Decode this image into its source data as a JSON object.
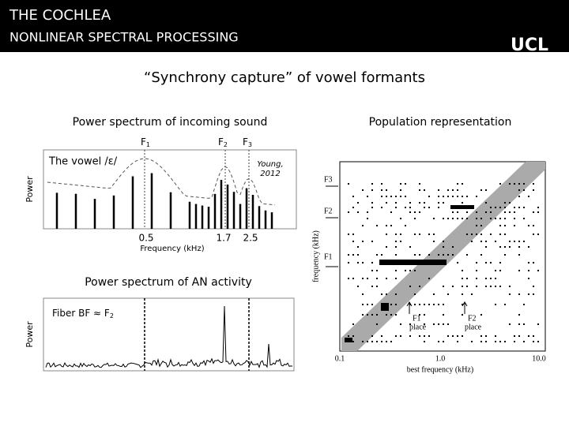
{
  "header": {
    "title": "THE COCHLEA",
    "subtitle": "NONLINEAR SPECTRAL PROCESSING",
    "logo": "UCL"
  },
  "slide_title": "“Synchrony capture” of vowel formants",
  "input_spectrum": {
    "heading": "Power spectrum of incoming sound",
    "formants": [
      {
        "base": "F",
        "sub": "1"
      },
      {
        "base": "F",
        "sub": "2"
      },
      {
        "base": "F",
        "sub": "3"
      }
    ],
    "annotation": "The vowel /ε/",
    "citation": [
      "Young,",
      "2012"
    ],
    "y_label": "Power",
    "x_ticks": [
      "0.5",
      "1.7",
      "2.5"
    ],
    "x_label": "Frequency (kHz)"
  },
  "an_spectrum": {
    "heading": "Power spectrum of AN activity",
    "annotation": {
      "base": "Fiber BF ≈ F",
      "sub": "2"
    },
    "y_label": "Power"
  },
  "population": {
    "heading": "Population representation",
    "y_label": "frequency (kHz)",
    "x_label": "best frequency (kHz)",
    "x_ticks": [
      "0.1",
      "1.0",
      "10.0"
    ],
    "formant_labels": [
      "F3",
      "F2",
      "F1"
    ],
    "place_labels": [
      [
        "F1",
        "place"
      ],
      [
        "F2",
        "place"
      ]
    ]
  }
}
